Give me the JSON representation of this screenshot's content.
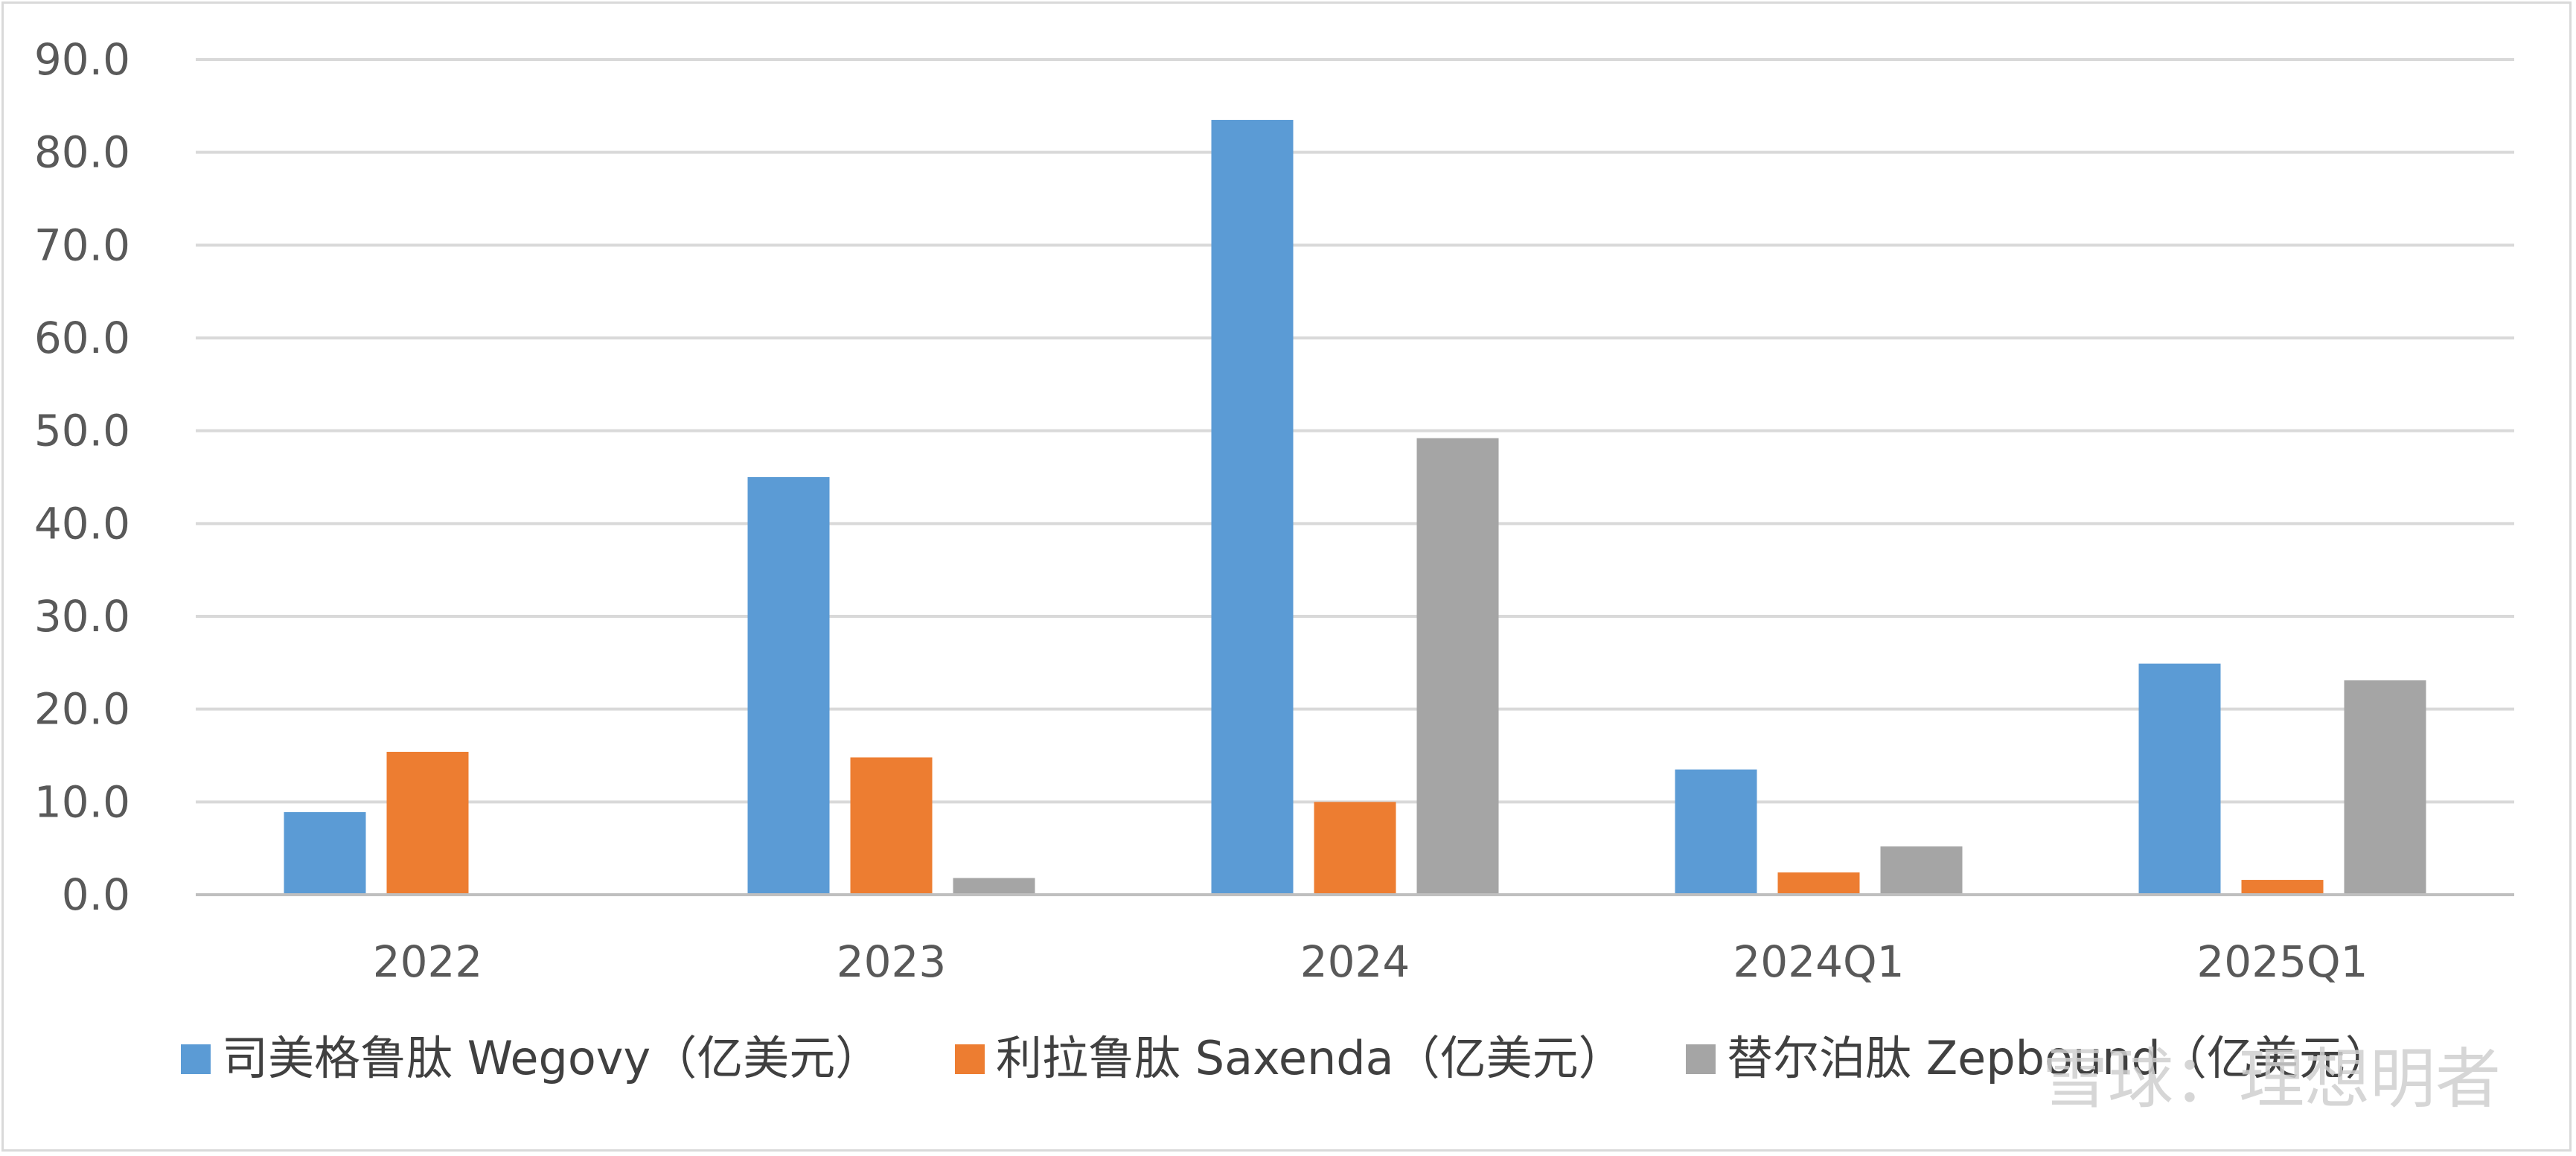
{
  "chart_data": {
    "type": "bar",
    "categories": [
      "2022",
      "2023",
      "2024",
      "2024Q1",
      "2025Q1"
    ],
    "series": [
      {
        "name": "司美格鲁肽 Wegovy（亿美元）",
        "color": "#5B9BD5",
        "values": [
          8.9,
          45.0,
          83.5,
          13.5,
          24.9
        ]
      },
      {
        "name": "利拉鲁肽 Saxenda（亿美元）",
        "color": "#ED7D31",
        "values": [
          15.4,
          14.8,
          10.0,
          2.4,
          1.6
        ]
      },
      {
        "name": "替尔泊肽 Zepbound（亿美元）",
        "color": "#A5A5A5",
        "values": [
          null,
          1.8,
          49.2,
          5.2,
          23.1
        ]
      }
    ],
    "yticks": [
      "0.0",
      "10.0",
      "20.0",
      "30.0",
      "40.0",
      "50.0",
      "60.0",
      "70.0",
      "80.0",
      "90.0"
    ],
    "ylim": [
      0,
      90
    ],
    "grid": true,
    "legend_position": "bottom"
  },
  "watermark": "雪球：理想明者"
}
